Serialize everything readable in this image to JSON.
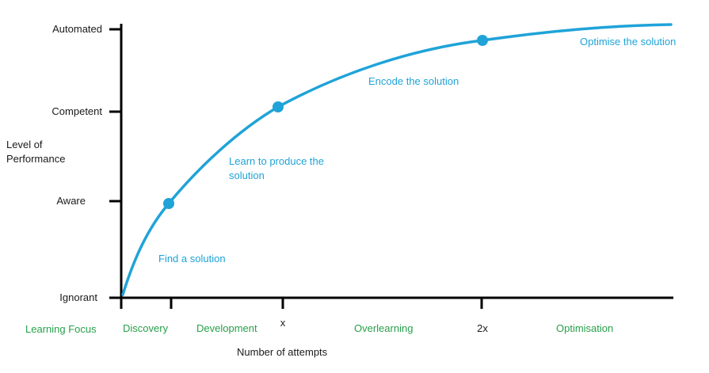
{
  "axes": {
    "y_label_line1": "Level of",
    "y_label_line2": "Performance",
    "x_label": "Number of attempts",
    "y_levels": [
      "Ignorant",
      "Aware",
      "Competent",
      "Automated"
    ],
    "x_ticks": [
      "x",
      "2x"
    ]
  },
  "curve_labels": {
    "find": "Find a solution",
    "learn_line1": "Learn to produce the",
    "learn_line2": "solution",
    "encode": "Encode the solution",
    "optimise": "Optimise the solution"
  },
  "focus": {
    "title": "Learning Focus",
    "stages": [
      "Discovery",
      "Development",
      "Overlearning",
      "Optimisation"
    ]
  },
  "colors": {
    "curve": "#1fa3d8",
    "axis": "#000000",
    "focus": "#27a04a",
    "labels": "#1a1a1a"
  },
  "icons": {
    "milestone_marker": "filled-circle"
  }
}
